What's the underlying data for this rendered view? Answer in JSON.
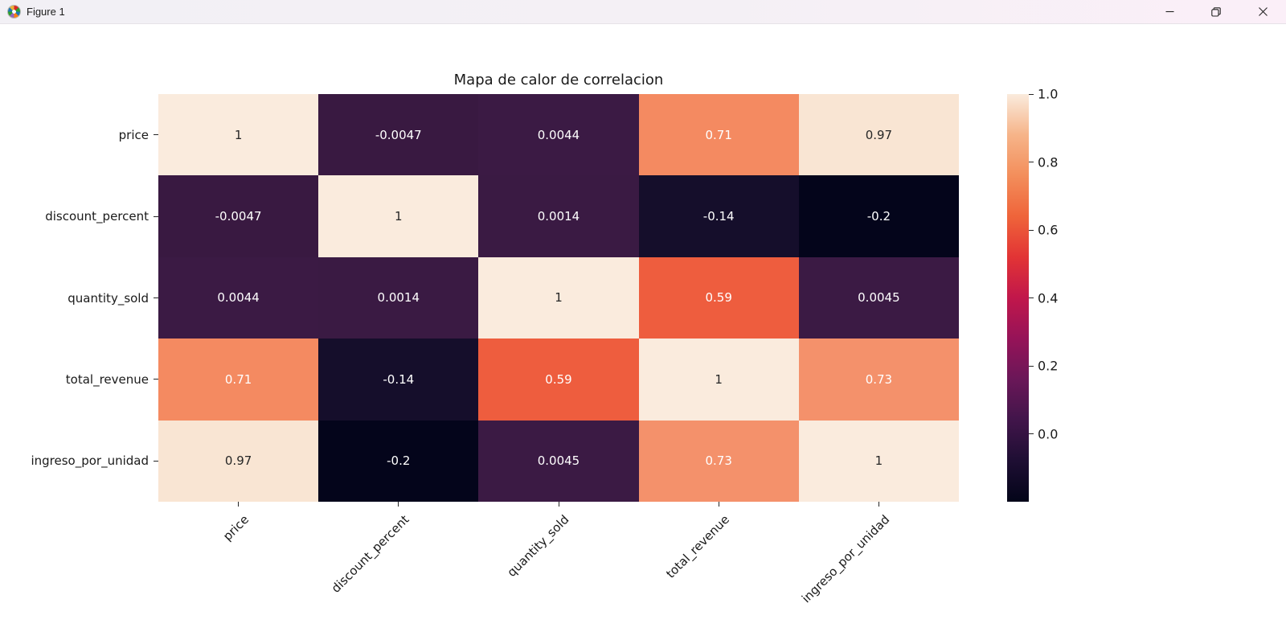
{
  "window": {
    "title": "Figure 1",
    "icon": "matplotlib-logo",
    "controls": {
      "minimize": "minimize",
      "restore": "restore-down",
      "close": "close"
    }
  },
  "chart_data": {
    "type": "heatmap",
    "title": "Mapa de calor de correlacion",
    "categories": [
      "price",
      "discount_percent",
      "quantity_sold",
      "total_revenue",
      "ingreso_por_unidad"
    ],
    "matrix": [
      [
        1,
        -0.0047,
        0.0044,
        0.71,
        0.97
      ],
      [
        -0.0047,
        1,
        0.0014,
        -0.14,
        -0.2
      ],
      [
        0.0044,
        0.0014,
        1,
        0.59,
        0.0045
      ],
      [
        0.71,
        -0.14,
        0.59,
        1,
        0.73
      ],
      [
        0.97,
        -0.2,
        0.0045,
        0.73,
        1
      ]
    ],
    "cell_labels": [
      [
        "1",
        "-0.0047",
        "0.0044",
        "0.71",
        "0.97"
      ],
      [
        "-0.0047",
        "1",
        "0.0014",
        "-0.14",
        "-0.2"
      ],
      [
        "0.0044",
        "0.0014",
        "1",
        "0.59",
        "0.0045"
      ],
      [
        "0.71",
        "-0.14",
        "0.59",
        "1",
        "0.73"
      ],
      [
        "0.97",
        "-0.2",
        "0.0045",
        "0.73",
        "1"
      ]
    ],
    "cell_colors": [
      [
        "#faebdd",
        "#391941",
        "#3b1a44",
        "#f48a61",
        "#f9e5d3"
      ],
      [
        "#391941",
        "#faebdd",
        "#3a1a43",
        "#150e2b",
        "#04051b"
      ],
      [
        "#3b1a44",
        "#3a1a43",
        "#faebdd",
        "#ee5d3e",
        "#3b1a44"
      ],
      [
        "#f48a61",
        "#150e2b",
        "#ee5d3e",
        "#faebdd",
        "#f4916b"
      ],
      [
        "#f9e5d3",
        "#04051b",
        "#3b1a44",
        "#f4916b",
        "#faebdd"
      ]
    ],
    "cell_text_colors": [
      [
        "dark",
        "light",
        "light",
        "light",
        "dark"
      ],
      [
        "light",
        "dark",
        "light",
        "light",
        "light"
      ],
      [
        "light",
        "light",
        "dark",
        "light",
        "light"
      ],
      [
        "light",
        "light",
        "light",
        "dark",
        "light"
      ],
      [
        "dark",
        "light",
        "light",
        "light",
        "dark"
      ]
    ],
    "annotation_dark_text": "#262626",
    "annotation_light_text": "#ffffff",
    "colormap": "rocket",
    "vmin": -0.2,
    "vmax": 1.0,
    "legend_position": "right",
    "grid": false,
    "colorbar": {
      "tick_labels": [
        "1.0",
        "0.8",
        "0.6",
        "0.4",
        "0.2",
        "0.0"
      ],
      "tick_values": [
        1.0,
        0.8,
        0.6,
        0.4,
        0.2,
        0.0
      ],
      "gradient_stops": [
        {
          "pos": 0,
          "color": "#faebdd"
        },
        {
          "pos": 10,
          "color": "#f6b489"
        },
        {
          "pos": 20,
          "color": "#f38e5b"
        },
        {
          "pos": 30,
          "color": "#ef643a"
        },
        {
          "pos": 40,
          "color": "#e23435"
        },
        {
          "pos": 50,
          "color": "#c1174b"
        },
        {
          "pos": 60,
          "color": "#961358"
        },
        {
          "pos": 70,
          "color": "#6a1758"
        },
        {
          "pos": 80,
          "color": "#41154a"
        },
        {
          "pos": 90,
          "color": "#1e0e33"
        },
        {
          "pos": 100,
          "color": "#030519"
        }
      ]
    }
  }
}
